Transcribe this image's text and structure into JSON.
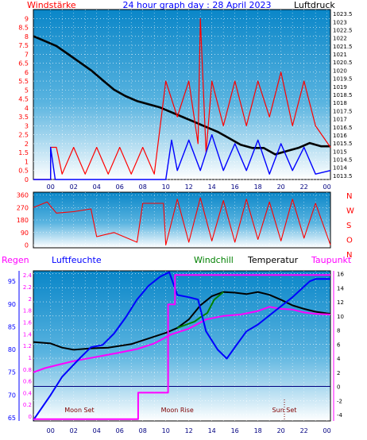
{
  "header": {
    "left_label": "Windstärke",
    "center_label": "24 hour graph day : 28 April 2023",
    "right_label": "Luftdruck"
  },
  "colors": {
    "background": "#ffffff",
    "plot_top": "#0a86c8",
    "plot_bottom": "#ffffff",
    "grid": "#ffffff",
    "wind_left_axis": "#ff0000",
    "wind_gust": "#ff0000",
    "wind_avg": "#0000ff",
    "pressure": "#000000",
    "direction": "#ff0000",
    "rain_axis": "#ff00ff",
    "humidity": "#0000ff",
    "temperature": "#000000",
    "windchill": "#008000",
    "dewpoint": "#ff00ff",
    "rain_cumulative": "#ff00ff",
    "zero_line": "#000080"
  },
  "chart_data": [
    {
      "type": "line",
      "title": "24 hour graph day : 28 April 2023",
      "left_axis_label": "Windstärke",
      "right_axis_label": "Luftdruck",
      "left_ticks": [
        "0",
        "0.5",
        "1",
        "1.5",
        "2",
        "2.5",
        "3",
        "3.5",
        "4",
        "4.5",
        "5",
        "5.5",
        "6",
        "6.5",
        "7",
        "7.5",
        "8",
        "8.5",
        "9"
      ],
      "right_ticks": [
        "1013.5",
        "1014",
        "1014.5",
        "1015",
        "1015.5",
        "1016",
        "1016.5",
        "1017",
        "1017.5",
        "1018",
        "1018.5",
        "1019",
        "1019.5",
        "1020",
        "1020.5",
        "1021",
        "1021.5",
        "1022",
        "1022.5",
        "1023",
        "1023.5"
      ],
      "left_range": [
        0,
        9.5
      ],
      "right_range": [
        1013.25,
        1023.75
      ],
      "x_ticks": [
        "00",
        "02",
        "04",
        "06",
        "08",
        "10",
        "12",
        "14",
        "16",
        "18",
        "20",
        "22",
        "00"
      ],
      "x_range_hours": [
        -1.5,
        24.3
      ],
      "series": [
        {
          "kind": "pressure",
          "points": [
            [
              -1.5,
              1022.1
            ],
            [
              -0.5,
              1021.8
            ],
            [
              0.5,
              1021.5
            ],
            [
              1.5,
              1021.0
            ],
            [
              2.5,
              1020.5
            ],
            [
              3.5,
              1020.0
            ],
            [
              4.5,
              1019.4
            ],
            [
              5.5,
              1018.8
            ],
            [
              6.5,
              1018.4
            ],
            [
              7.5,
              1018.1
            ],
            [
              8.5,
              1017.9
            ],
            [
              9.5,
              1017.7
            ],
            [
              10.5,
              1017.4
            ],
            [
              11.5,
              1017.1
            ],
            [
              12.5,
              1016.8
            ],
            [
              13.5,
              1016.5
            ],
            [
              14.5,
              1016.2
            ],
            [
              15.5,
              1015.8
            ],
            [
              16.5,
              1015.4
            ],
            [
              17.5,
              1015.2
            ],
            [
              18.5,
              1015.2
            ],
            [
              19.5,
              1014.8
            ],
            [
              20.5,
              1015.0
            ],
            [
              21.5,
              1015.2
            ],
            [
              22.5,
              1015.5
            ],
            [
              23.5,
              1015.3
            ],
            [
              24.3,
              1015.3
            ]
          ]
        },
        {
          "kind": "gust",
          "points": [
            [
              -1.5,
              0
            ],
            [
              0.0,
              0
            ],
            [
              0.0,
              1.8
            ],
            [
              0.5,
              1.8
            ],
            [
              1.0,
              0.3
            ],
            [
              2.0,
              1.8
            ],
            [
              3.0,
              0.3
            ],
            [
              4.0,
              1.8
            ],
            [
              5.0,
              0.3
            ],
            [
              6.0,
              1.8
            ],
            [
              7.0,
              0.3
            ],
            [
              8.0,
              1.8
            ],
            [
              9.0,
              0.3
            ],
            [
              10.0,
              5.5
            ],
            [
              11.0,
              3.5
            ],
            [
              12.0,
              5.5
            ],
            [
              12.8,
              2.0
            ],
            [
              13.0,
              9.0
            ],
            [
              13.5,
              1.5
            ],
            [
              14.0,
              5.5
            ],
            [
              15.0,
              3.0
            ],
            [
              16.0,
              5.5
            ],
            [
              17.0,
              3.0
            ],
            [
              18.0,
              5.5
            ],
            [
              19.0,
              3.5
            ],
            [
              20.0,
              6.0
            ],
            [
              21.0,
              3.0
            ],
            [
              22.0,
              5.5
            ],
            [
              23.0,
              3.0
            ],
            [
              24.3,
              1.8
            ]
          ]
        },
        {
          "kind": "average",
          "points": [
            [
              -1.5,
              0
            ],
            [
              0.0,
              0
            ],
            [
              0.0,
              1.8
            ],
            [
              0.4,
              0
            ],
            [
              10.0,
              0
            ],
            [
              10.5,
              2.2
            ],
            [
              11.0,
              0.5
            ],
            [
              12.0,
              2.2
            ],
            [
              13.0,
              0.5
            ],
            [
              14.0,
              2.5
            ],
            [
              15.0,
              0.5
            ],
            [
              16.0,
              2.0
            ],
            [
              17.0,
              0.5
            ],
            [
              18.0,
              2.2
            ],
            [
              19.0,
              0.3
            ],
            [
              20.0,
              2.0
            ],
            [
              21.0,
              0.5
            ],
            [
              22.0,
              1.8
            ],
            [
              23.0,
              0.3
            ],
            [
              24.3,
              0.5
            ]
          ]
        }
      ]
    },
    {
      "type": "line",
      "left_ticks": [
        "0",
        "90",
        "180",
        "270",
        "360"
      ],
      "right_ticks": [
        "N",
        "W",
        "S",
        "O",
        "N"
      ],
      "left_range": [
        -20,
        380
      ],
      "series": [
        {
          "kind": "direction",
          "points": [
            [
              -1.5,
              270
            ],
            [
              -0.3,
              310
            ],
            [
              0.5,
              230
            ],
            [
              2.0,
              240
            ],
            [
              3.5,
              260
            ],
            [
              4.0,
              60
            ],
            [
              5.5,
              90
            ],
            [
              7.5,
              20
            ],
            [
              8.0,
              300
            ],
            [
              9.8,
              300
            ],
            [
              10.0,
              0
            ],
            [
              11.0,
              330
            ],
            [
              12.0,
              20
            ],
            [
              13.0,
              340
            ],
            [
              14.0,
              30
            ],
            [
              15.0,
              320
            ],
            [
              16.0,
              20
            ],
            [
              17.0,
              330
            ],
            [
              18.0,
              40
            ],
            [
              19.0,
              310
            ],
            [
              20.0,
              30
            ],
            [
              21.0,
              330
            ],
            [
              22.0,
              50
            ],
            [
              23.0,
              300
            ],
            [
              24.3,
              0
            ]
          ]
        }
      ]
    },
    {
      "type": "line",
      "rain_label": "Regen",
      "humidity_label": "Luftfeuchte",
      "windchill_label": "Windchill",
      "temperature_label": "Temperatur",
      "dewpoint_label": "Taupunkt",
      "rain_ticks": [
        "0",
        "0.2",
        "0.4",
        "0.6",
        "0.8",
        "1",
        "1.2",
        "1.4",
        "1.6",
        "1.8",
        "2",
        "2.2",
        "2.4"
      ],
      "humidity_ticks": [
        "65",
        "70",
        "75",
        "80",
        "85",
        "90",
        "95"
      ],
      "temp_ticks": [
        "-4",
        "-2",
        "0",
        "2",
        "4",
        "6",
        "8",
        "10",
        "12",
        "14",
        "16"
      ],
      "temp_range": [
        -4.9,
        16.4
      ],
      "humidity_range": [
        64.3,
        97.3
      ],
      "rain_range": [
        -0.08,
        2.47
      ],
      "x_ticks": [
        "00",
        "02",
        "04",
        "06",
        "08",
        "10",
        "12",
        "14",
        "16",
        "18",
        "20",
        "22",
        "00"
      ],
      "annotations": [
        {
          "text": "Moon Set",
          "hour": 2.5
        },
        {
          "text": "Moon Rise",
          "hour": 11.0
        },
        {
          "text": "Sun Set",
          "hour": 20.3
        }
      ],
      "series": [
        {
          "kind": "temperature",
          "points": [
            [
              -1.5,
              6.3
            ],
            [
              0.0,
              6.1
            ],
            [
              1.0,
              5.5
            ],
            [
              2.0,
              5.2
            ],
            [
              3.5,
              5.4
            ],
            [
              5.0,
              5.5
            ],
            [
              7.0,
              6.0
            ],
            [
              8.5,
              6.8
            ],
            [
              10.0,
              7.6
            ],
            [
              11.0,
              8.3
            ],
            [
              12.0,
              9.5
            ],
            [
              13.0,
              11.5
            ],
            [
              14.0,
              12.8
            ],
            [
              15.0,
              13.4
            ],
            [
              16.0,
              13.3
            ],
            [
              17.0,
              13.1
            ],
            [
              18.0,
              13.4
            ],
            [
              19.0,
              13.0
            ],
            [
              20.0,
              12.3
            ],
            [
              21.0,
              11.5
            ],
            [
              22.0,
              11.0
            ],
            [
              23.0,
              10.6
            ],
            [
              24.3,
              10.3
            ]
          ]
        },
        {
          "kind": "dewpoint",
          "points": [
            [
              -1.5,
              2.0
            ],
            [
              -0.5,
              2.6
            ],
            [
              0.5,
              3.0
            ],
            [
              2.0,
              3.6
            ],
            [
              4.0,
              4.2
            ],
            [
              6.0,
              4.8
            ],
            [
              7.5,
              5.3
            ],
            [
              9.0,
              6.1
            ],
            [
              10.5,
              7.4
            ],
            [
              12.0,
              8.2
            ],
            [
              13.5,
              9.5
            ],
            [
              15.0,
              10.0
            ],
            [
              16.5,
              10.2
            ],
            [
              18.0,
              10.7
            ],
            [
              19.0,
              11.3
            ],
            [
              20.0,
              11.0
            ],
            [
              21.0,
              10.9
            ],
            [
              22.0,
              10.5
            ],
            [
              23.0,
              10.3
            ],
            [
              24.3,
              10.2
            ]
          ]
        },
        {
          "kind": "windchill",
          "points": [
            [
              11.0,
              8.3
            ],
            [
              12.0,
              8.9
            ],
            [
              12.5,
              9.2
            ],
            [
              13.0,
              9.8
            ],
            [
              13.6,
              10.4
            ],
            [
              14.2,
              12.3
            ],
            [
              15.0,
              13.4
            ]
          ]
        },
        {
          "kind": "humidity",
          "points": [
            [
              -1.5,
              64.5
            ],
            [
              0.0,
              70.0
            ],
            [
              1.0,
              74.0
            ],
            [
              2.5,
              78.0
            ],
            [
              3.5,
              80.5
            ],
            [
              4.5,
              81.0
            ],
            [
              5.5,
              83.5
            ],
            [
              6.5,
              87.0
            ],
            [
              7.5,
              91.0
            ],
            [
              8.5,
              94.0
            ],
            [
              9.5,
              96.0
            ],
            [
              10.3,
              97.0
            ],
            [
              11.0,
              92.0
            ],
            [
              12.0,
              91.5
            ],
            [
              12.8,
              91.0
            ],
            [
              13.5,
              84.0
            ],
            [
              14.5,
              80.0
            ],
            [
              15.3,
              78.0
            ],
            [
              16.0,
              80.5
            ],
            [
              17.0,
              84.0
            ],
            [
              18.0,
              85.5
            ],
            [
              19.5,
              88.5
            ],
            [
              21.0,
              91.5
            ],
            [
              22.5,
              95.0
            ],
            [
              23.0,
              95.5
            ],
            [
              24.3,
              95.5
            ]
          ]
        },
        {
          "kind": "rain",
          "points": [
            [
              -1.5,
              -0.05
            ],
            [
              7.6,
              -0.05
            ],
            [
              7.6,
              0.4
            ],
            [
              10.2,
              0.4
            ],
            [
              10.2,
              1.9
            ],
            [
              10.8,
              1.9
            ],
            [
              10.8,
              2.4
            ],
            [
              24.3,
              2.4
            ]
          ]
        }
      ]
    }
  ]
}
